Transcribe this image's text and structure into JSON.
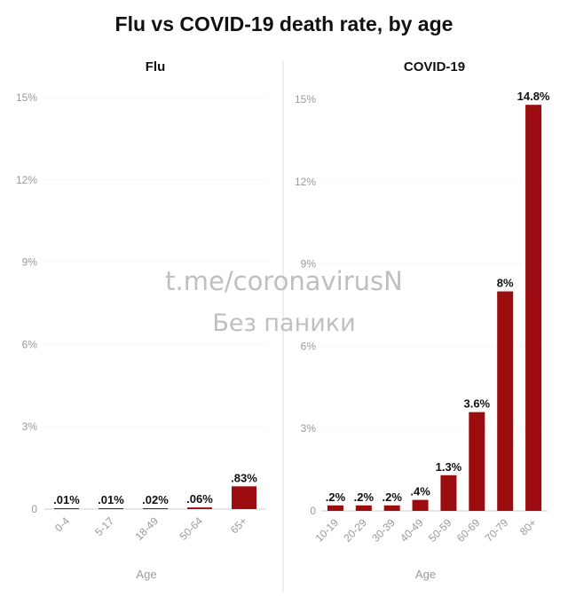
{
  "title": "Flu vs COVID-19 death rate, by age",
  "watermark": {
    "line1": "t.me/coronavirusN",
    "line2": "Без паники"
  },
  "chart_data": [
    {
      "type": "bar",
      "title": "Flu",
      "xlabel": "Age",
      "ylabel": "",
      "ylim": [
        0,
        15
      ],
      "yticks": [
        "0",
        "3%",
        "6%",
        "9%",
        "12%",
        "15%"
      ],
      "grid": true,
      "bar_color": "#9b0c0f",
      "categories": [
        "0-4",
        "5-17",
        "18-49",
        "50-64",
        "65+"
      ],
      "values": [
        0.01,
        0.01,
        0.02,
        0.06,
        0.83
      ],
      "value_labels": [
        ".01%",
        ".01%",
        ".02%",
        ".06%",
        ".83%"
      ]
    },
    {
      "type": "bar",
      "title": "COVID-19",
      "xlabel": "Age",
      "ylabel": "",
      "ylim": [
        0,
        15
      ],
      "yticks": [
        "0",
        "3%",
        "6%",
        "9%",
        "12%",
        "15%"
      ],
      "grid": true,
      "bar_color": "#9b0c0f",
      "categories": [
        "10-19",
        "20-29",
        "30-39",
        "40-49",
        "50-59",
        "60-69",
        "70-79",
        "80+"
      ],
      "values": [
        0.2,
        0.2,
        0.2,
        0.4,
        1.3,
        3.6,
        8,
        14.8
      ],
      "value_labels": [
        ".2%",
        ".2%",
        ".2%",
        ".4%",
        "1.3%",
        "3.6%",
        "8%",
        "14.8%"
      ]
    }
  ]
}
